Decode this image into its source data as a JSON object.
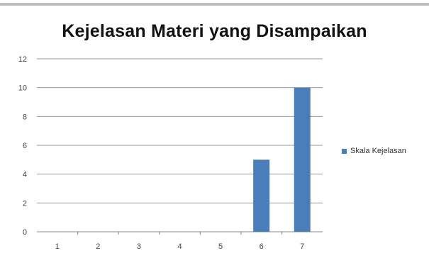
{
  "chart_data": {
    "type": "bar",
    "title": "Kejelasan Materi yang Disampaikan",
    "categories": [
      "1",
      "2",
      "3",
      "4",
      "5",
      "6",
      "7"
    ],
    "series": [
      {
        "name": "Skala Kejelasan",
        "values": [
          0,
          0,
          0,
          0,
          0,
          5,
          10
        ],
        "color": "#4a7ebb"
      }
    ],
    "ylim": [
      0,
      12
    ],
    "yticks": [
      0,
      2,
      4,
      6,
      8,
      10,
      12
    ],
    "grid": true,
    "legend_position": "right"
  }
}
